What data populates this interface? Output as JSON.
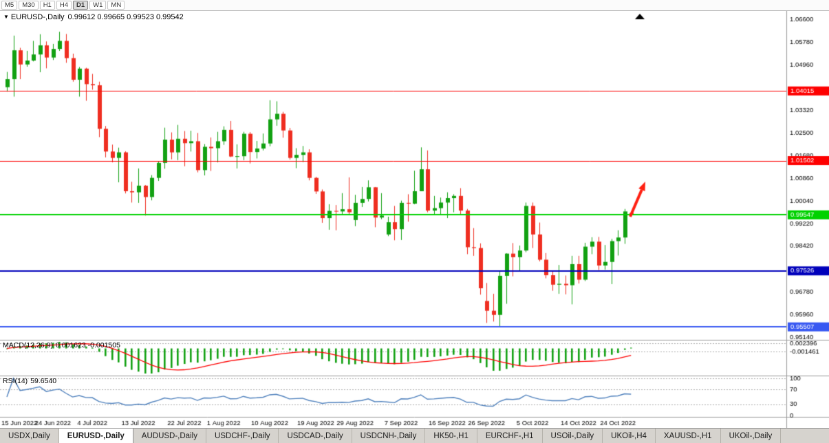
{
  "toolbar": {
    "timeframes": [
      {
        "label": "M5",
        "active": false
      },
      {
        "label": "M30",
        "active": false
      },
      {
        "label": "H1",
        "active": false
      },
      {
        "label": "H4",
        "active": false
      },
      {
        "label": "D1",
        "active": true
      },
      {
        "label": "W1",
        "active": false
      },
      {
        "label": "MN",
        "active": false
      }
    ]
  },
  "chart": {
    "symbol_label": "EURUSD-,Daily",
    "ohlc_text": "0.99612 0.99665 0.99523 0.99542",
    "open": "0.99612",
    "high": "0.99665",
    "low": "0.99523",
    "close": "0.99542",
    "price_max": 1.066,
    "price_min": 0.9514,
    "price_axis_labels": [
      "1.06600",
      "1.05780",
      "1.04960",
      "1.03320",
      "1.02500",
      "1.01680",
      "1.00860",
      "1.00040",
      "0.99220",
      "0.98420",
      "0.96780",
      "0.95960",
      "0.95140"
    ],
    "hlines": [
      {
        "price": 1.04015,
        "label": "1.04015",
        "color": "#fe0000",
        "width": 1
      },
      {
        "price": 1.01502,
        "label": "1.01502",
        "color": "#fe0000",
        "width": 1
      },
      {
        "price": 0.99547,
        "label": "0.99547",
        "color": "#00d200",
        "width": 2
      },
      {
        "price": 0.97526,
        "label": "0.97526",
        "color": "#0000bb",
        "width": 2
      },
      {
        "price": 0.95507,
        "label": "0.95507",
        "color": "#3959f2",
        "width": 2
      }
    ],
    "arrow_color": "#ff2012"
  },
  "macd": {
    "name_label": "MACD(12,26,9)",
    "values_label": "0.001623 -0.001505",
    "axis_labels": [
      "0.002396",
      "-0.001461"
    ],
    "axis_values": [
      0.002396,
      -0.001461
    ],
    "histogram_color": "#12a112",
    "signal_color": "#fe0000",
    "params": {
      "fast": 12,
      "slow": 26,
      "signal": 9
    }
  },
  "rsi": {
    "name_label": "RSI(14)",
    "value_label": "59.6540",
    "period": 14,
    "axis_labels": [
      "100",
      "70",
      "30",
      "0"
    ],
    "axis_values": [
      100,
      70,
      30,
      0
    ],
    "grid_levels": [
      100,
      70,
      30
    ],
    "line_color": "#4f81bd"
  },
  "date_axis": {
    "ticks": [
      {
        "i": 0,
        "label": "15 Jun 2022"
      },
      {
        "i": 7,
        "label": "24 Jun 2022"
      },
      {
        "i": 13,
        "label": "4 Jul 2022"
      },
      {
        "i": 20,
        "label": "13 Jul 2022"
      },
      {
        "i": 27,
        "label": "22 Jul 2022"
      },
      {
        "i": 33,
        "label": "1 Aug 2022"
      },
      {
        "i": 40,
        "label": "10 Aug 2022"
      },
      {
        "i": 47,
        "label": "19 Aug 2022"
      },
      {
        "i": 53,
        "label": "29 Aug 2022"
      },
      {
        "i": 60,
        "label": "7 Sep 2022"
      },
      {
        "i": 67,
        "label": "16 Sep 2022"
      },
      {
        "i": 73,
        "label": "26 Sep 2022"
      },
      {
        "i": 80,
        "label": "5 Oct 2022"
      },
      {
        "i": 87,
        "label": "14 Oct 2022"
      },
      {
        "i": 93,
        "label": "24 Oct 2022"
      }
    ]
  },
  "tabs": [
    {
      "label": "USDX,Daily",
      "active": false
    },
    {
      "label": "EURUSD-,Daily",
      "active": true
    },
    {
      "label": "AUDUSD-,Daily",
      "active": false
    },
    {
      "label": "USDCHF-,Daily",
      "active": false
    },
    {
      "label": "USDCAD-,Daily",
      "active": false
    },
    {
      "label": "USDCNH-,Daily",
      "active": false
    },
    {
      "label": "HK50-,H1",
      "active": false
    },
    {
      "label": "EURCHF-,H1",
      "active": false
    },
    {
      "label": "USOil-,Daily",
      "active": false
    },
    {
      "label": "UKOil-,H4",
      "active": false
    },
    {
      "label": "XAUUSD-,H1",
      "active": false
    },
    {
      "label": "UKOil-,Daily",
      "active": false
    }
  ],
  "chart_data": {
    "type": "candlestick",
    "symbol": "EURUSD-",
    "timeframe": "Daily",
    "up_color": "#12a112",
    "down_color": "#ef2e21",
    "current_ohlc": {
      "open": 0.99612,
      "high": 0.99665,
      "low": 0.99523,
      "close": 0.99542
    },
    "dates": [
      "15 Jun",
      "16 Jun",
      "17 Jun",
      "20 Jun",
      "21 Jun",
      "22 Jun",
      "23 Jun",
      "24 Jun",
      "27 Jun",
      "28 Jun",
      "29 Jun",
      "30 Jun",
      "1 Jul",
      "4 Jul",
      "5 Jul",
      "6 Jul",
      "7 Jul",
      "8 Jul",
      "11 Jul",
      "12 Jul",
      "13 Jul",
      "14 Jul",
      "15 Jul",
      "18 Jul",
      "19 Jul",
      "20 Jul",
      "21 Jul",
      "22 Jul",
      "25 Jul",
      "26 Jul",
      "27 Jul",
      "28 Jul",
      "29 Jul",
      "1 Aug",
      "2 Aug",
      "3 Aug",
      "4 Aug",
      "5 Aug",
      "8 Aug",
      "9 Aug",
      "10 Aug",
      "11 Aug",
      "12 Aug",
      "15 Aug",
      "16 Aug",
      "17 Aug",
      "18 Aug",
      "19 Aug",
      "22 Aug",
      "23 Aug",
      "24 Aug",
      "25 Aug",
      "26 Aug",
      "29 Aug",
      "30 Aug",
      "31 Aug",
      "1 Sep",
      "2 Sep",
      "5 Sep",
      "6 Sep",
      "7 Sep",
      "8 Sep",
      "9 Sep",
      "12 Sep",
      "13 Sep",
      "14 Sep",
      "15 Sep",
      "16 Sep",
      "19 Sep",
      "20 Sep",
      "21 Sep",
      "22 Sep",
      "23 Sep",
      "26 Sep",
      "27 Sep",
      "28 Sep",
      "29 Sep",
      "30 Sep",
      "3 Oct",
      "4 Oct",
      "5 Oct",
      "6 Oct",
      "7 Oct",
      "10 Oct",
      "11 Oct",
      "12 Oct",
      "13 Oct",
      "14 Oct",
      "17 Oct",
      "18 Oct",
      "19 Oct",
      "20 Oct",
      "21 Oct",
      "24 Oct",
      "25 Oct",
      "26 Oct"
    ],
    "candles": [
      [
        1.0415,
        1.047,
        1.0399,
        1.0444
      ],
      [
        1.0444,
        1.0601,
        1.0381,
        1.0548
      ],
      [
        1.0548,
        1.0557,
        1.0444,
        1.0497
      ],
      [
        1.0497,
        1.0546,
        1.0489,
        1.0511
      ],
      [
        1.0511,
        1.0582,
        1.0508,
        1.0533
      ],
      [
        1.0533,
        1.0606,
        1.0469,
        1.0566
      ],
      [
        1.0566,
        1.058,
        1.0483,
        1.0522
      ],
      [
        1.0522,
        1.0571,
        1.0513,
        1.0553
      ],
      [
        1.0553,
        1.0615,
        1.0546,
        1.0582
      ],
      [
        1.0582,
        1.0607,
        1.0503,
        1.052
      ],
      [
        1.052,
        1.0536,
        1.0435,
        1.0442
      ],
      [
        1.0442,
        1.0488,
        1.0381,
        1.0482
      ],
      [
        1.0482,
        1.0485,
        1.0366,
        1.0426
      ],
      [
        1.0426,
        1.0463,
        1.0406,
        1.0422
      ],
      [
        1.0422,
        1.0435,
        1.0235,
        1.0265
      ],
      [
        1.0265,
        1.0275,
        1.0162,
        1.0183
      ],
      [
        1.0183,
        1.0208,
        1.0144,
        1.016
      ],
      [
        1.016,
        1.0197,
        1.0072,
        1.018
      ],
      [
        1.018,
        1.0184,
        1.0032,
        1.004
      ],
      [
        1.004,
        1.0074,
        0.9999,
        1.0036
      ],
      [
        1.0036,
        1.0122,
        0.9998,
        1.006
      ],
      [
        1.006,
        1.0062,
        0.9952,
        1.0019
      ],
      [
        1.0019,
        1.0098,
        1.0007,
        1.0088
      ],
      [
        1.0088,
        1.0149,
        1.0077,
        1.0142
      ],
      [
        1.0142,
        1.0269,
        1.0121,
        1.0226
      ],
      [
        1.0226,
        1.0252,
        1.0155,
        1.018
      ],
      [
        1.018,
        1.0279,
        1.0152,
        1.0229
      ],
      [
        1.0229,
        1.0257,
        1.013,
        1.0213
      ],
      [
        1.0213,
        1.0258,
        1.0183,
        1.022
      ],
      [
        1.022,
        1.025,
        1.0108,
        1.0116
      ],
      [
        1.0116,
        1.021,
        1.0097,
        1.02
      ],
      [
        1.02,
        1.0234,
        1.0113,
        1.0195
      ],
      [
        1.0195,
        1.0254,
        1.0144,
        1.022
      ],
      [
        1.022,
        1.0274,
        1.0207,
        1.0261
      ],
      [
        1.0261,
        1.0293,
        1.0163,
        1.0165
      ],
      [
        1.0165,
        1.0209,
        1.0122,
        1.0166
      ],
      [
        1.0166,
        1.0254,
        1.0152,
        1.0247
      ],
      [
        1.0247,
        1.0253,
        1.014,
        1.0181
      ],
      [
        1.0181,
        1.0221,
        1.0158,
        1.0194
      ],
      [
        1.0194,
        1.0248,
        1.0187,
        1.0212
      ],
      [
        1.0212,
        1.0368,
        1.0202,
        1.0299
      ],
      [
        1.0299,
        1.0364,
        1.0276,
        1.0319
      ],
      [
        1.0319,
        1.0326,
        1.0233,
        1.0259
      ],
      [
        1.0259,
        1.0268,
        1.0154,
        1.016
      ],
      [
        1.016,
        1.0195,
        1.0123,
        1.0171
      ],
      [
        1.0171,
        1.0203,
        1.0145,
        1.018
      ],
      [
        1.018,
        1.0191,
        1.0079,
        1.0088
      ],
      [
        1.0088,
        1.0092,
        1.003,
        1.0039
      ],
      [
        1.0039,
        1.0046,
        0.9926,
        0.9943
      ],
      [
        0.9943,
        0.9993,
        0.9901,
        0.9969
      ],
      [
        0.9969,
        0.999,
        0.9899,
        0.9967
      ],
      [
        0.9967,
        1.0033,
        0.9958,
        0.9975
      ],
      [
        0.9975,
        1.009,
        0.9957,
        0.9964
      ],
      [
        0.9936,
        1.0027,
        0.9914,
        0.9998
      ],
      [
        0.9998,
        1.0055,
        0.9983,
        1.0012
      ],
      [
        1.0012,
        1.0079,
        1.0003,
        1.0054
      ],
      [
        1.0054,
        1.0055,
        0.991,
        0.9945
      ],
      [
        0.9945,
        1.0033,
        0.9939,
        0.9952
      ],
      [
        0.9884,
        0.9948,
        0.9878,
        0.9928
      ],
      [
        0.9928,
        0.9987,
        0.9863,
        0.9903
      ],
      [
        0.9903,
        1.0006,
        0.9864,
        0.9998
      ],
      [
        0.9998,
        1.0029,
        0.993,
        0.9995
      ],
      [
        0.9995,
        1.0114,
        0.9993,
        1.004
      ],
      [
        1.004,
        1.0198,
        1.004,
        1.0119
      ],
      [
        1.0119,
        1.0187,
        0.9964,
        0.997
      ],
      [
        0.997,
        1.0023,
        0.9955,
        0.9979
      ],
      [
        0.9979,
        1.0017,
        0.9954,
        0.9999
      ],
      [
        0.9999,
        1.0036,
        0.9943,
        1.0015
      ],
      [
        1.0015,
        1.0029,
        0.9964,
        1.0023
      ],
      [
        1.0023,
        1.0051,
        0.9954,
        0.997
      ],
      [
        0.997,
        0.9976,
        0.9813,
        0.9838
      ],
      [
        0.9838,
        0.9907,
        0.9807,
        0.9835
      ],
      [
        0.9835,
        0.9852,
        0.9667,
        0.969
      ],
      [
        0.9644,
        0.9709,
        0.9565,
        0.9609
      ],
      [
        0.9609,
        0.967,
        0.957,
        0.9594
      ],
      [
        0.9594,
        0.975,
        0.9551,
        0.9735
      ],
      [
        0.9735,
        0.9816,
        0.9634,
        0.9815
      ],
      [
        0.9815,
        0.9853,
        0.9733,
        0.9802
      ],
      [
        0.9802,
        0.9844,
        0.9752,
        0.9826
      ],
      [
        0.9826,
        0.9999,
        0.982,
        0.9987
      ],
      [
        0.9987,
        0.9999,
        0.9835,
        0.9884
      ],
      [
        0.9884,
        0.9927,
        0.9787,
        0.9793
      ],
      [
        0.9793,
        0.9817,
        0.9726,
        0.9737
      ],
      [
        0.9737,
        0.975,
        0.9681,
        0.9703
      ],
      [
        0.9703,
        0.9774,
        0.967,
        0.9706
      ],
      [
        0.9706,
        0.9736,
        0.9668,
        0.9701
      ],
      [
        0.9701,
        0.9807,
        0.9632,
        0.9777
      ],
      [
        0.9777,
        0.9807,
        0.9707,
        0.9721
      ],
      [
        0.9721,
        0.9854,
        0.9716,
        0.984
      ],
      [
        0.984,
        0.9874,
        0.9813,
        0.9858
      ],
      [
        0.9858,
        0.9875,
        0.9756,
        0.9772
      ],
      [
        0.9772,
        0.9846,
        0.9757,
        0.9785
      ],
      [
        0.9785,
        0.9868,
        0.9705,
        0.986
      ],
      [
        0.986,
        0.9899,
        0.9808,
        0.9873
      ],
      [
        0.9873,
        0.9976,
        0.985,
        0.9967
      ],
      [
        0.99612,
        0.99665,
        0.99523,
        0.99542
      ]
    ]
  }
}
